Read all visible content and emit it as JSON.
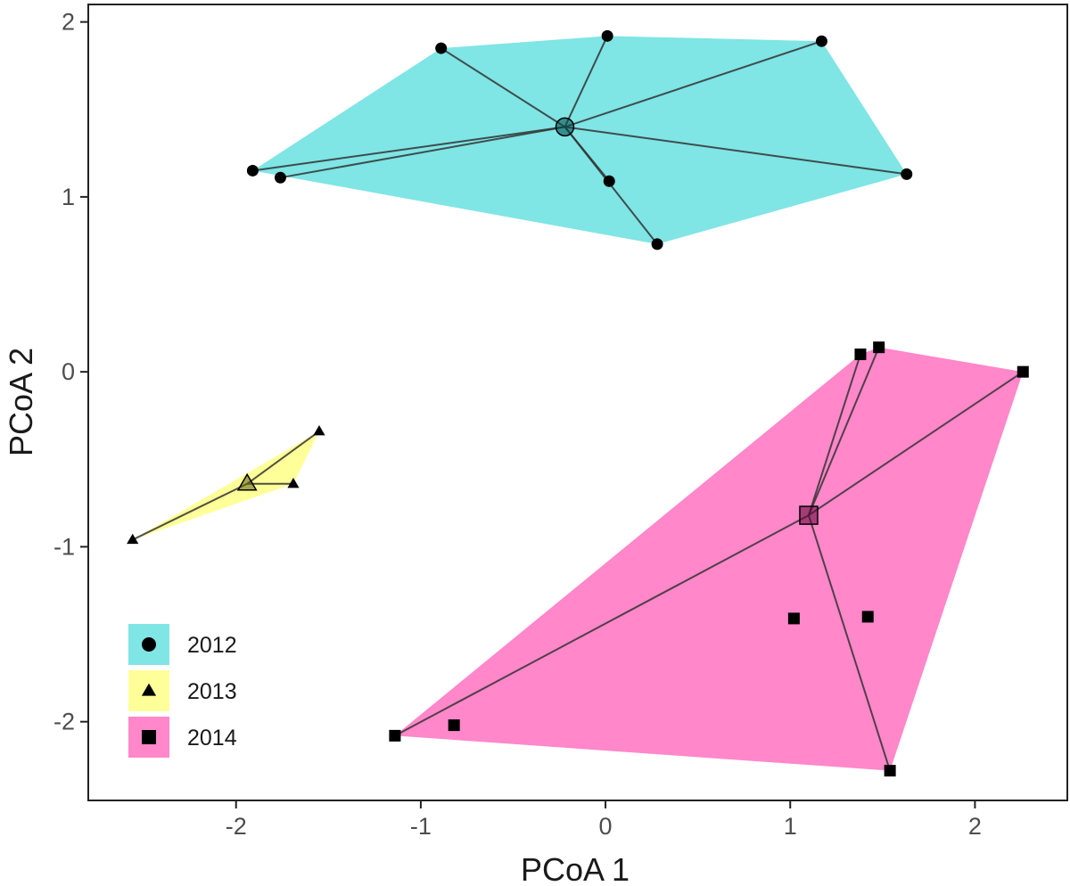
{
  "chart_data": {
    "type": "scatter",
    "title": "",
    "xlabel": "PCoA 1",
    "ylabel": "PCoA 2",
    "xlim": [
      -2.8,
      2.5
    ],
    "ylim": [
      -2.45,
      2.1
    ],
    "x_ticks": [
      -2,
      -1,
      0,
      1,
      2
    ],
    "y_ticks": [
      -2,
      -1,
      0,
      1,
      2
    ],
    "x_tick_labels": [
      "-2",
      "-1",
      "0",
      "1",
      "2"
    ],
    "y_tick_labels": [
      "-2",
      "-1",
      "0",
      "1",
      "2"
    ],
    "grid": false,
    "legend_position": "bottom-left",
    "series": [
      {
        "name": "2012",
        "marker": "circle",
        "fill": "#00CCCC",
        "centroid": [
          -0.22,
          1.4
        ],
        "points": [
          [
            -0.89,
            1.85
          ],
          [
            0.01,
            1.92
          ],
          [
            1.17,
            1.89
          ],
          [
            -1.91,
            1.15
          ],
          [
            -1.76,
            1.11
          ],
          [
            0.02,
            1.09
          ],
          [
            1.63,
            1.13
          ],
          [
            0.28,
            0.73
          ]
        ],
        "hull": [
          [
            -0.89,
            1.85
          ],
          [
            0.01,
            1.92
          ],
          [
            1.17,
            1.89
          ],
          [
            1.63,
            1.13
          ],
          [
            0.28,
            0.73
          ],
          [
            -1.91,
            1.15
          ]
        ],
        "spokes": [
          0,
          1,
          2,
          3,
          4,
          5,
          6,
          7
        ]
      },
      {
        "name": "2013",
        "marker": "triangle",
        "fill": "#FFFF33",
        "centroid": [
          -1.94,
          -0.64
        ],
        "points": [
          [
            -1.55,
            -0.34
          ],
          [
            -1.69,
            -0.64
          ],
          [
            -2.56,
            -0.96
          ]
        ],
        "hull": [
          [
            -1.55,
            -0.34
          ],
          [
            -1.69,
            -0.64
          ],
          [
            -2.56,
            -0.96
          ]
        ],
        "spokes": [
          0,
          1,
          2
        ]
      },
      {
        "name": "2014",
        "marker": "square",
        "fill": "#FF0F96",
        "centroid": [
          1.1,
          -0.82
        ],
        "points": [
          [
            1.38,
            0.1
          ],
          [
            1.48,
            0.14
          ],
          [
            2.26,
            0.0
          ],
          [
            1.02,
            -1.41
          ],
          [
            1.42,
            -1.4
          ],
          [
            -1.14,
            -2.08
          ],
          [
            -0.82,
            -2.02
          ],
          [
            1.54,
            -2.28
          ]
        ],
        "hull": [
          [
            1.38,
            0.1
          ],
          [
            1.48,
            0.14
          ],
          [
            2.26,
            0.0
          ],
          [
            1.54,
            -2.28
          ],
          [
            -1.14,
            -2.08
          ]
        ],
        "spokes": [
          0,
          1,
          2,
          5,
          7
        ]
      }
    ]
  }
}
